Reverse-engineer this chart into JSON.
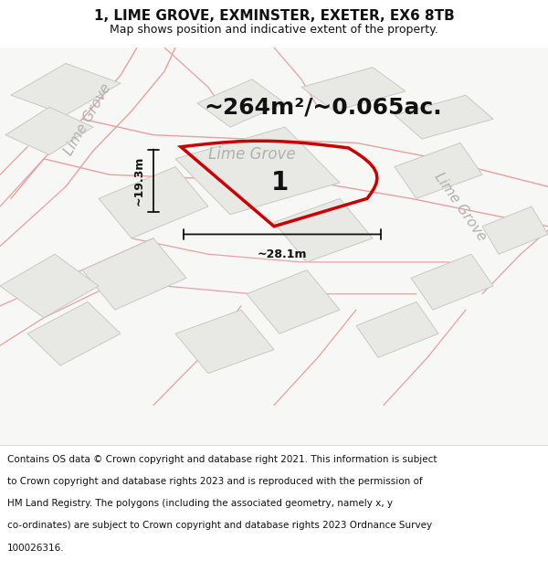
{
  "title": "1, LIME GROVE, EXMINSTER, EXETER, EX6 8TB",
  "subtitle": "Map shows position and indicative extent of the property.",
  "area_text": "~264m²/~0.065ac.",
  "dim_width": "~28.1m",
  "dim_height": "~19.3m",
  "road_label": "Lime Grove",
  "plot_label": "1",
  "map_bg": "#f7f7f5",
  "block_color": "#e8e8e5",
  "block_edge": "#c8c8c4",
  "road_line_color": "#e8a0a0",
  "plot_edge": "#cc0000",
  "annotation_color": "#111111",
  "road_text_color": "#b0b0b0",
  "title_fontsize": 11,
  "subtitle_fontsize": 9,
  "area_fontsize": 18,
  "plot_label_fontsize": 20,
  "road_label_fontsize": 13,
  "copyright_fontsize": 7.5,
  "copyright_lines": [
    "Contains OS data © Crown copyright and database right 2021. This information is subject",
    "to Crown copyright and database rights 2023 and is reproduced with the permission of",
    "HM Land Registry. The polygons (including the associated geometry, namely x, y",
    "co-ordinates) are subject to Crown copyright and database rights 2023 Ordnance Survey",
    "100026316."
  ]
}
